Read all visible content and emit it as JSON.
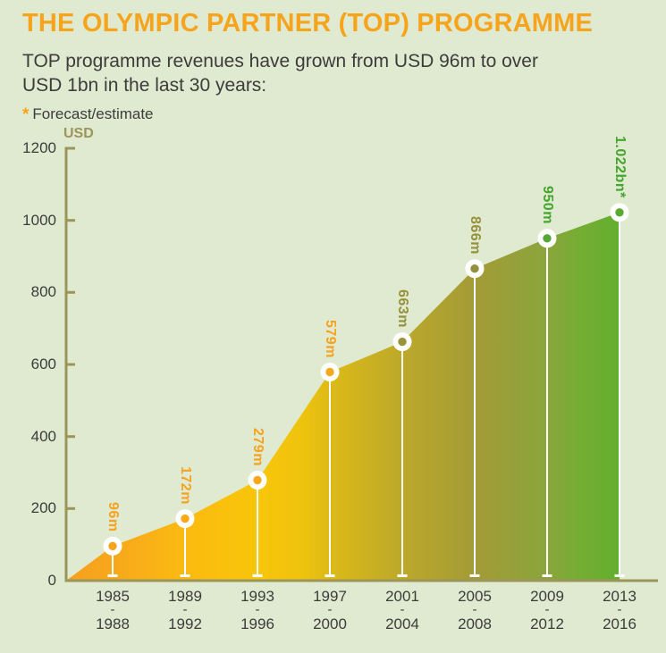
{
  "header": {
    "title": "THE OLYMPIC PARTNER (TOP) PROGRAMME",
    "subtitle_lines": [
      "TOP programme revenues have grown from USD 96m to over",
      "USD 1bn in the last 30 years:"
    ],
    "legend_marker": "*",
    "legend_text": "Forecast/estimate"
  },
  "colors": {
    "background": "#e0ead1",
    "title_orange": "#f7a41d",
    "body_text": "#3c3c3b",
    "axis_olive": "#9c9559",
    "stem_white": "#ffffff"
  },
  "chart_data": {
    "type": "area",
    "y_axis_label": "USD",
    "ylim": [
      0,
      1200
    ],
    "y_ticks": [
      1200,
      1000,
      800,
      600,
      400,
      200,
      0
    ],
    "grid": false,
    "separator": "-",
    "periods": [
      {
        "start": "1985",
        "end": "1988"
      },
      {
        "start": "1989",
        "end": "1992"
      },
      {
        "start": "1993",
        "end": "1996"
      },
      {
        "start": "1997",
        "end": "2000"
      },
      {
        "start": "2001",
        "end": "2004"
      },
      {
        "start": "2005",
        "end": "2008"
      },
      {
        "start": "2009",
        "end": "2012"
      },
      {
        "start": "2013",
        "end": "2016"
      }
    ],
    "values": [
      96,
      172,
      279,
      579,
      663,
      866,
      950,
      1022
    ],
    "point_labels": [
      "96m",
      "172m",
      "279m",
      "579m",
      "663m",
      "866m",
      "950m",
      "1.022bn*"
    ],
    "point_label_colors": [
      "#f5a320",
      "#f5a320",
      "#f5a320",
      "#f5a320",
      "#97913d",
      "#97913d",
      "#46a52e",
      "#46a52e"
    ],
    "dot_colors": [
      "#f6a41d",
      "#f7a919",
      "#f7a81b",
      "#f2a91a",
      "#9b9339",
      "#93913f",
      "#55a837",
      "#57ab30"
    ],
    "forecast_point_index": 7,
    "gradient_stops": [
      {
        "offset": 0.0,
        "color": "#f6a01e"
      },
      {
        "offset": 0.085,
        "color": "#f7a81c"
      },
      {
        "offset": 0.215,
        "color": "#fbba10"
      },
      {
        "offset": 0.346,
        "color": "#f8c60a"
      },
      {
        "offset": 0.43,
        "color": "#eec30e"
      },
      {
        "offset": 0.477,
        "color": "#dcba17"
      },
      {
        "offset": 0.608,
        "color": "#bca92a"
      },
      {
        "offset": 0.738,
        "color": "#a39b37"
      },
      {
        "offset": 0.87,
        "color": "#8aa53c"
      },
      {
        "offset": 0.93,
        "color": "#74ad33"
      },
      {
        "offset": 1.0,
        "color": "#63ae2f"
      }
    ]
  }
}
